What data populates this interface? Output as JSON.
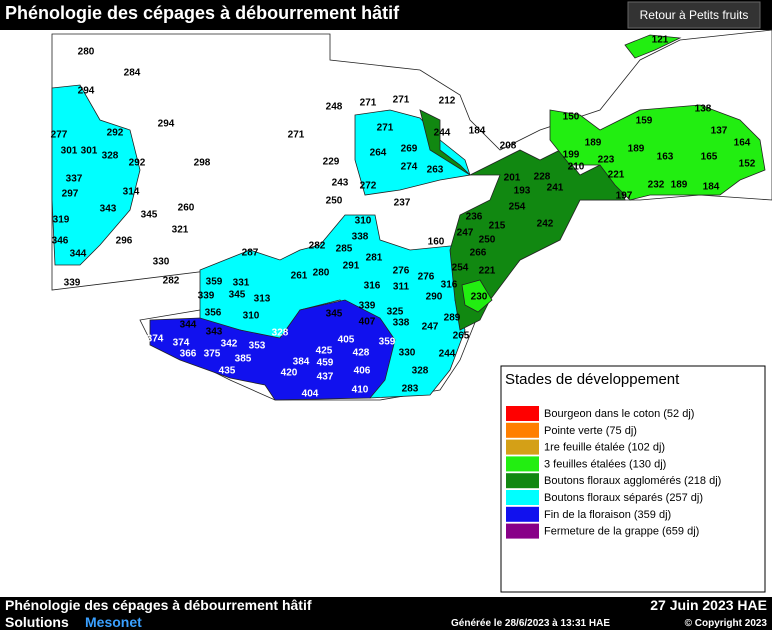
{
  "header": {
    "title": "Phénologie des cépages à débourrement hâtif",
    "button": "Retour à Petits fruits"
  },
  "legend": {
    "title": "Stades de développement",
    "items": [
      {
        "label": "Bourgeon dans le coton (52 dj)",
        "color": "#ff0000"
      },
      {
        "label": "Pointe verte (75 dj)",
        "color": "#ff7f00"
      },
      {
        "label": "1re feuille étalée (102 dj)",
        "color": "#d4a017"
      },
      {
        "label": "3 feuilles étalées (130 dj)",
        "color": "#22ee11"
      },
      {
        "label": "Boutons floraux agglomérés (218 dj)",
        "color": "#118811"
      },
      {
        "label": "Boutons floraux séparés (257 dj)",
        "color": "#00ffff"
      },
      {
        "label": "Fin de la floraison (359 dj)",
        "color": "#1111ee"
      },
      {
        "label": "Fermeture de la grappe (659 dj)",
        "color": "#880088"
      }
    ]
  },
  "footer": {
    "title": "Phénologie des cépages à débourrement hâtif",
    "date": "27 Juin 2023 HAE",
    "brand_a": "Solutions",
    "brand_b": "Mesonet",
    "generated": "Générée le 28/6/2023 à 13:31 HAE",
    "copyright": "© Copyright 2023"
  },
  "map_labels": [
    280,
    284,
    294,
    277,
    292,
    294,
    301,
    301,
    328,
    292,
    298,
    337,
    297,
    314,
    343,
    345,
    260,
    319,
    321,
    346,
    296,
    344,
    330,
    282,
    339,
    248,
    271,
    271,
    212,
    271,
    271,
    244,
    184,
    229,
    264,
    269,
    274,
    263,
    243,
    272,
    250,
    237,
    310,
    338,
    282,
    285,
    281,
    291,
    287,
    261,
    280,
    276,
    276,
    316,
    311,
    316,
    290,
    359,
    331,
    339,
    345,
    313,
    356,
    310,
    328,
    344,
    343,
    374,
    374,
    342,
    353,
    366,
    375,
    385,
    435,
    345,
    339,
    407,
    325,
    338,
    289,
    247,
    265,
    405,
    425,
    428,
    359,
    330,
    244,
    384,
    459,
    420,
    437,
    406,
    328,
    404,
    410,
    283,
    121,
    138,
    150,
    159,
    137,
    208,
    189,
    189,
    164,
    199,
    223,
    163,
    165,
    210,
    152,
    221,
    201,
    228,
    193,
    241,
    232,
    189,
    184,
    197,
    254,
    236,
    215,
    242,
    247,
    160,
    250,
    266,
    254,
    221,
    230
  ]
}
